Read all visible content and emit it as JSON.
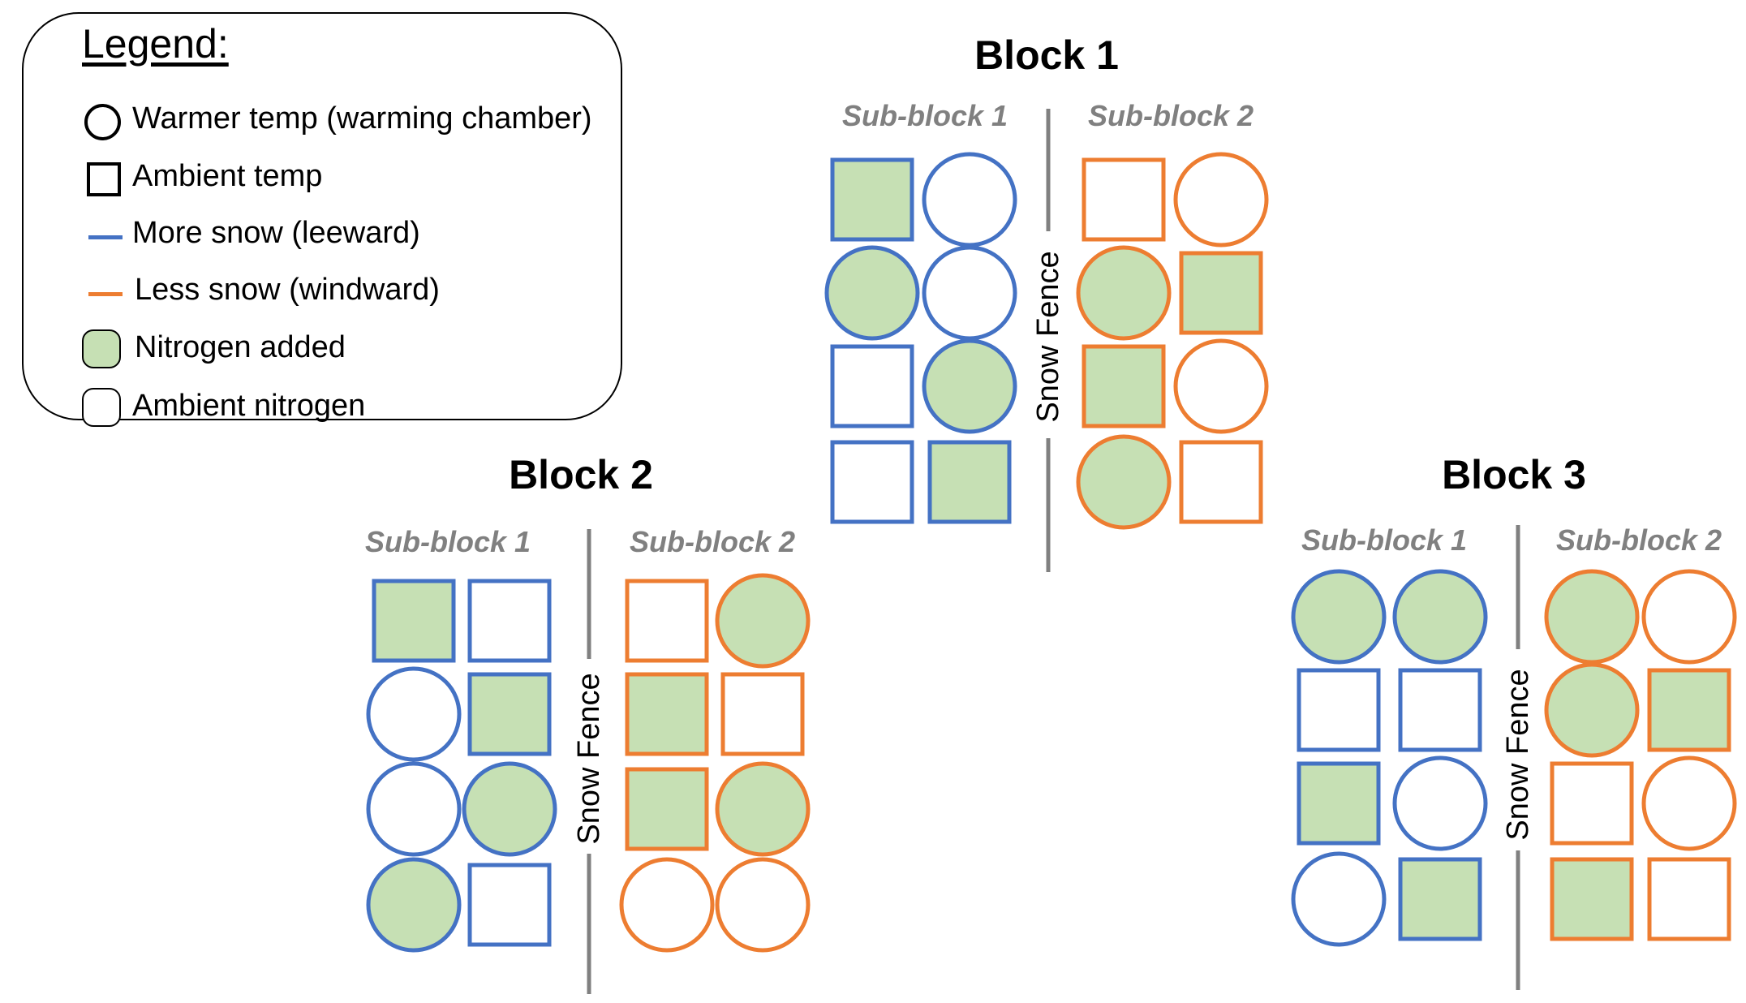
{
  "colors": {
    "more_snow": "#4472C4",
    "less_snow": "#ED7D31",
    "nitrogen": "#C6E0B4",
    "ambient": "#FFFFFF",
    "fence": "#808080",
    "subblock_label": "#808080",
    "text": "#000000"
  },
  "legend": {
    "title": "Legend:",
    "items": [
      {
        "symbol": "circle-outline-icon",
        "label": "Warmer temp (warming chamber)"
      },
      {
        "symbol": "square-outline-icon",
        "label": "Ambient temp"
      },
      {
        "symbol": "blue-line-icon",
        "label": "More snow (leeward)"
      },
      {
        "symbol": "orange-line-icon",
        "label": "Less snow (windward)"
      },
      {
        "symbol": "green-rounded-square-icon",
        "label": "Nitrogen added"
      },
      {
        "symbol": "white-rounded-square-icon",
        "label": "Ambient nitrogen"
      }
    ]
  },
  "blocks": [
    {
      "title": "Block 1",
      "fence_label": "Snow Fence",
      "subblocks": [
        {
          "label": "Sub-block 1",
          "snow": "more",
          "plots": [
            [
              {
                "shape": "square",
                "nitrogen": true
              },
              {
                "shape": "circle",
                "nitrogen": false
              }
            ],
            [
              {
                "shape": "circle",
                "nitrogen": true
              },
              {
                "shape": "circle",
                "nitrogen": false
              }
            ],
            [
              {
                "shape": "square",
                "nitrogen": false
              },
              {
                "shape": "circle",
                "nitrogen": true
              }
            ],
            [
              {
                "shape": "square",
                "nitrogen": false
              },
              {
                "shape": "square",
                "nitrogen": true
              }
            ]
          ]
        },
        {
          "label": "Sub-block 2",
          "snow": "less",
          "plots": [
            [
              {
                "shape": "square",
                "nitrogen": false
              },
              {
                "shape": "circle",
                "nitrogen": false
              }
            ],
            [
              {
                "shape": "circle",
                "nitrogen": true
              },
              {
                "shape": "square",
                "nitrogen": true
              }
            ],
            [
              {
                "shape": "square",
                "nitrogen": true
              },
              {
                "shape": "circle",
                "nitrogen": false
              }
            ],
            [
              {
                "shape": "circle",
                "nitrogen": true
              },
              {
                "shape": "square",
                "nitrogen": false
              }
            ]
          ]
        }
      ]
    },
    {
      "title": "Block 2",
      "fence_label": "Snow Fence",
      "subblocks": [
        {
          "label": "Sub-block 1",
          "snow": "more",
          "plots": [
            [
              {
                "shape": "square",
                "nitrogen": true
              },
              {
                "shape": "square",
                "nitrogen": false
              }
            ],
            [
              {
                "shape": "circle",
                "nitrogen": false
              },
              {
                "shape": "square",
                "nitrogen": true
              }
            ],
            [
              {
                "shape": "circle",
                "nitrogen": false
              },
              {
                "shape": "circle",
                "nitrogen": true
              }
            ],
            [
              {
                "shape": "circle",
                "nitrogen": true
              },
              {
                "shape": "square",
                "nitrogen": false
              }
            ]
          ]
        },
        {
          "label": "Sub-block 2",
          "snow": "less",
          "plots": [
            [
              {
                "shape": "square",
                "nitrogen": false
              },
              {
                "shape": "circle",
                "nitrogen": true
              }
            ],
            [
              {
                "shape": "square",
                "nitrogen": true
              },
              {
                "shape": "square",
                "nitrogen": false
              }
            ],
            [
              {
                "shape": "square",
                "nitrogen": true
              },
              {
                "shape": "circle",
                "nitrogen": true
              }
            ],
            [
              {
                "shape": "circle",
                "nitrogen": false
              },
              {
                "shape": "circle",
                "nitrogen": false
              }
            ]
          ]
        }
      ]
    },
    {
      "title": "Block 3",
      "fence_label": "Snow Fence",
      "subblocks": [
        {
          "label": "Sub-block 1",
          "snow": "more",
          "plots": [
            [
              {
                "shape": "circle",
                "nitrogen": true
              },
              {
                "shape": "circle",
                "nitrogen": true
              }
            ],
            [
              {
                "shape": "square",
                "nitrogen": false
              },
              {
                "shape": "square",
                "nitrogen": false
              }
            ],
            [
              {
                "shape": "square",
                "nitrogen": true
              },
              {
                "shape": "circle",
                "nitrogen": false
              }
            ],
            [
              {
                "shape": "circle",
                "nitrogen": false
              },
              {
                "shape": "square",
                "nitrogen": true
              }
            ]
          ]
        },
        {
          "label": "Sub-block 2",
          "snow": "less",
          "plots": [
            [
              {
                "shape": "circle",
                "nitrogen": true
              },
              {
                "shape": "circle",
                "nitrogen": false
              }
            ],
            [
              {
                "shape": "circle",
                "nitrogen": true
              },
              {
                "shape": "square",
                "nitrogen": true
              }
            ],
            [
              {
                "shape": "square",
                "nitrogen": false
              },
              {
                "shape": "circle",
                "nitrogen": false
              }
            ],
            [
              {
                "shape": "square",
                "nitrogen": true
              },
              {
                "shape": "square",
                "nitrogen": false
              }
            ]
          ]
        }
      ]
    }
  ]
}
